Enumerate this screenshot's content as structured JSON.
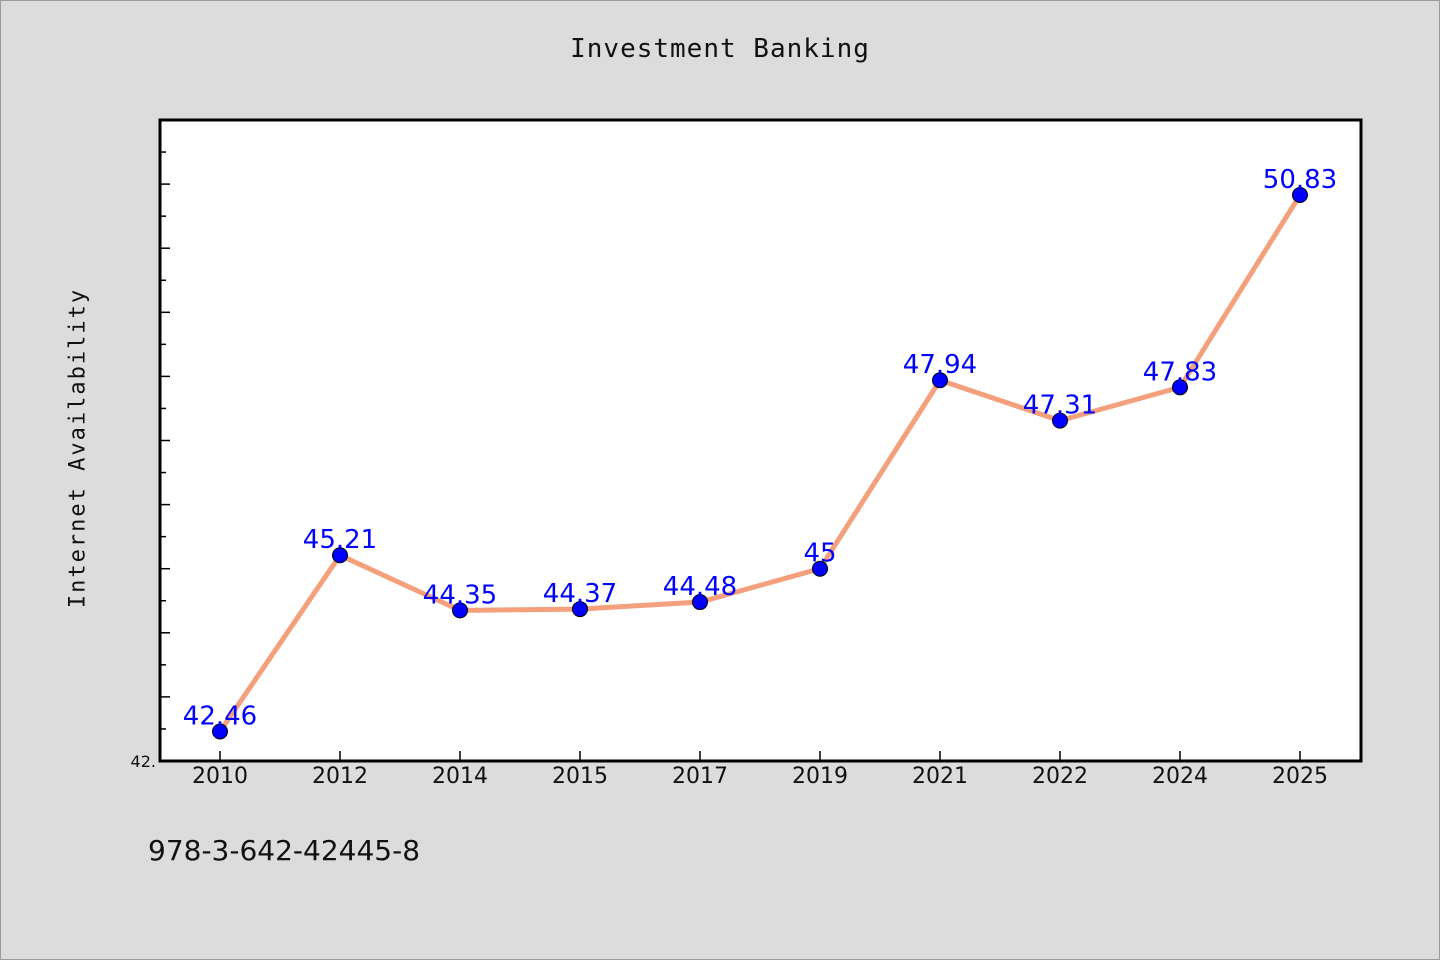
{
  "chart_data": {
    "type": "line",
    "title": "Investment Banking",
    "xlabel": "",
    "ylabel": "Internet Availability",
    "categories": [
      "2010",
      "2012",
      "2014",
      "2015",
      "2017",
      "2019",
      "2021",
      "2022",
      "2024",
      "2025"
    ],
    "series": [
      {
        "values": [
          42.46,
          45.21,
          44.35,
          44.37,
          44.48,
          45,
          47.94,
          47.31,
          47.83,
          50.83
        ],
        "labels": [
          "42.46",
          "45.21",
          "44.35",
          "44.37",
          "44.48",
          "45",
          "47.94",
          "47.31",
          "47.83",
          "50.83"
        ]
      }
    ],
    "ylim": [
      42.0,
      52.0
    ],
    "ytick_labels": [
      "42."
    ],
    "grid": false,
    "legend": "none",
    "colors": {
      "background": "#dcdcdc",
      "plot_background": "#ffffff",
      "line": "#f4a07c",
      "marker": "#0000ff",
      "data_label": "#0000ff"
    }
  },
  "footer": {
    "isbn": "978-3-642-42445-8"
  }
}
